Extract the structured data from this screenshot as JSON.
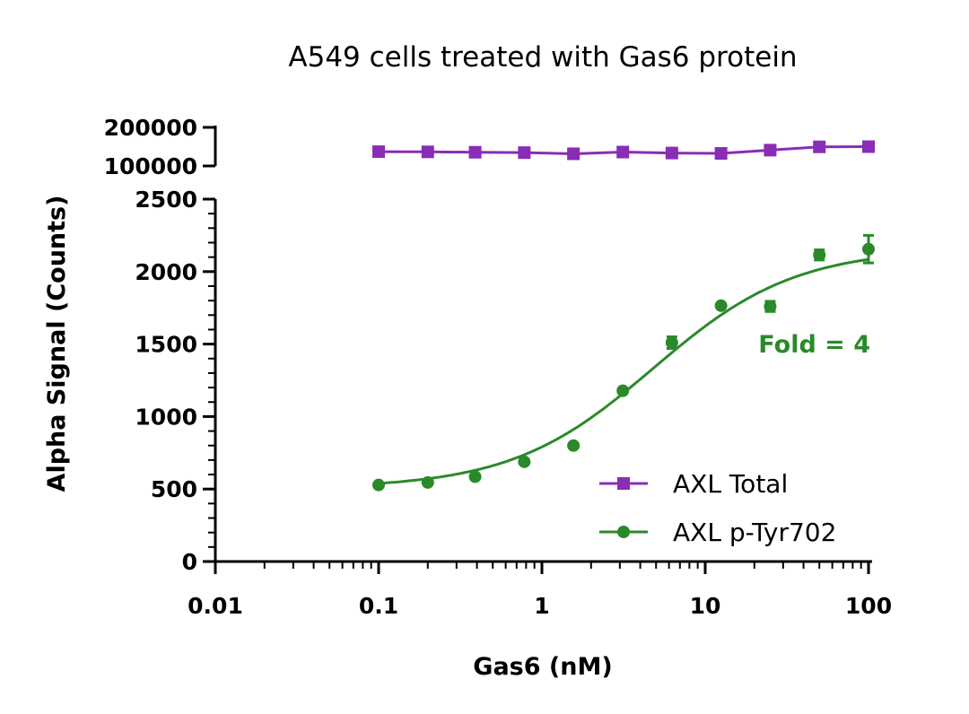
{
  "chart_data": {
    "type": "scatter",
    "title": "A549 cells treated with Gas6 protein",
    "xlabel": "Gas6 (nM)",
    "ylabel": "Alpha Signal (Counts)",
    "x_scale": "log",
    "xlim": [
      0.01,
      100
    ],
    "x_ticks": [
      0.01,
      0.1,
      1,
      10,
      100
    ],
    "x_tick_labels": [
      "0.01",
      "0.1",
      "1",
      "10",
      "100"
    ],
    "y_axis_segments": [
      {
        "ylim": [
          0,
          2500
        ],
        "ticks": [
          0,
          500,
          1000,
          1500,
          2000,
          2500
        ],
        "tick_labels": [
          "0",
          "500",
          "1000",
          "1500",
          "2000",
          "2500"
        ]
      },
      {
        "ylim": [
          100000,
          200000
        ],
        "ticks": [
          100000,
          200000
        ],
        "tick_labels": [
          "100000",
          "200000"
        ]
      }
    ],
    "grid": false,
    "legend_position": "bottom-right",
    "series": [
      {
        "name": "AXL Total",
        "color": "#8a2cb5",
        "marker": "square",
        "x": [
          0.1,
          0.2,
          0.39,
          0.78,
          1.56,
          3.13,
          6.25,
          12.5,
          25,
          50,
          100
        ],
        "y": [
          137000,
          136500,
          135500,
          134500,
          131500,
          136000,
          133500,
          132500,
          141000,
          149500,
          150000
        ],
        "err": [
          0,
          0,
          0,
          0,
          0,
          8000,
          0,
          0,
          0,
          0,
          0
        ]
      },
      {
        "name": "AXL p-Tyr702",
        "color": "#2a8a2a",
        "marker": "circle",
        "x": [
          0.1,
          0.2,
          0.39,
          0.78,
          1.56,
          3.13,
          6.25,
          12.5,
          25,
          50,
          100
        ],
        "y": [
          528,
          545,
          585,
          688,
          800,
          1178,
          1510,
          1765,
          1760,
          2115,
          2155
        ],
        "err": [
          0,
          0,
          0,
          0,
          0,
          0,
          40,
          0,
          35,
          35,
          95
        ],
        "fit": {
          "bottom": 505,
          "top": 2160,
          "ec50": 4.8,
          "hill": 1.0
        }
      }
    ],
    "annotations": [
      {
        "text": "Fold = 4",
        "color": "#2a8a2a"
      }
    ]
  },
  "colors": {
    "axl_total": "#8a2cb5",
    "axl_ptyr": "#2a8a2a"
  }
}
